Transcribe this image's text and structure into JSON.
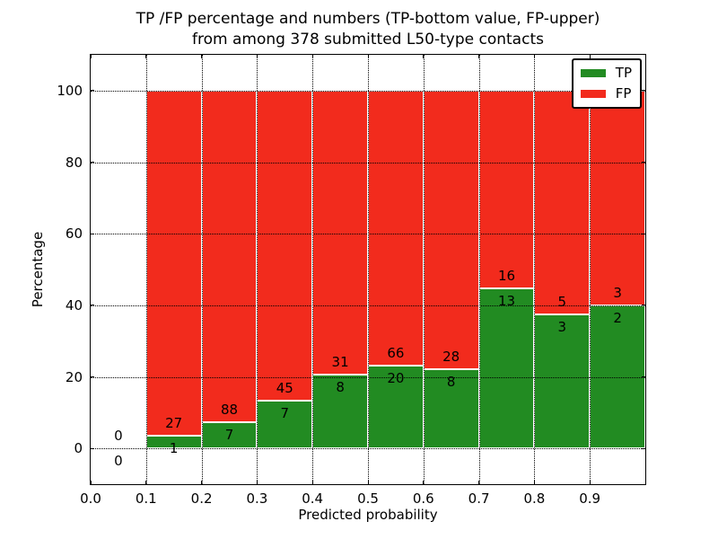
{
  "figure": {
    "title_line1": "TP /FP percentage and numbers (TP-bottom value, FP-upper)",
    "title_line2": "from among 378 submitted L50-type contacts",
    "xlabel": "Predicted probability",
    "ylabel": "Percentage"
  },
  "legend": {
    "position": "upper right",
    "items": [
      {
        "label": "TP",
        "color": "#228b22"
      },
      {
        "label": "FP",
        "color": "#f22b1d"
      }
    ]
  },
  "axes": {
    "xlim": [
      0.0,
      1.0
    ],
    "ylim": [
      -10,
      110
    ],
    "x_tick_values": [
      0.0,
      0.1,
      0.2,
      0.3,
      0.4,
      0.5,
      0.6,
      0.7,
      0.8,
      0.9
    ],
    "x_tick_labels": [
      "0.0",
      "0.1",
      "0.2",
      "0.3",
      "0.4",
      "0.5",
      "0.6",
      "0.7",
      "0.8",
      "0.9"
    ],
    "y_tick_values": [
      0,
      20,
      40,
      60,
      80,
      100
    ],
    "y_tick_labels": [
      "0",
      "20",
      "40",
      "60",
      "80",
      "100"
    ],
    "grid": true,
    "grid_style": "dotted"
  },
  "chart_data": {
    "type": "bar",
    "stacked": true,
    "normalization": "percent_of_bin",
    "title": "TP /FP percentage and numbers (TP-bottom value, FP-upper) from among 378 submitted L50-type contacts",
    "xlabel": "Predicted probability",
    "ylabel": "Percentage",
    "xlim": [
      0.0,
      1.0
    ],
    "ylim": [
      -10,
      110
    ],
    "grid": true,
    "legend_position": "upper right",
    "total_contacts": 378,
    "bin_width": 0.1,
    "bin_starts": [
      0.0,
      0.1,
      0.2,
      0.3,
      0.4,
      0.5,
      0.6,
      0.7,
      0.8,
      0.9
    ],
    "series": [
      {
        "name": "TP",
        "color": "#228b22",
        "counts": [
          0,
          1,
          7,
          7,
          8,
          20,
          8,
          13,
          3,
          2
        ]
      },
      {
        "name": "FP",
        "color": "#f22b1d",
        "counts": [
          0,
          27,
          88,
          45,
          31,
          66,
          28,
          16,
          5,
          3
        ]
      }
    ],
    "tp_percent_by_bin": [
      null,
      3.6,
      7.4,
      13.5,
      20.5,
      23.3,
      22.2,
      44.8,
      37.5,
      40.0
    ],
    "bar_edge_color": "#ffffff"
  }
}
